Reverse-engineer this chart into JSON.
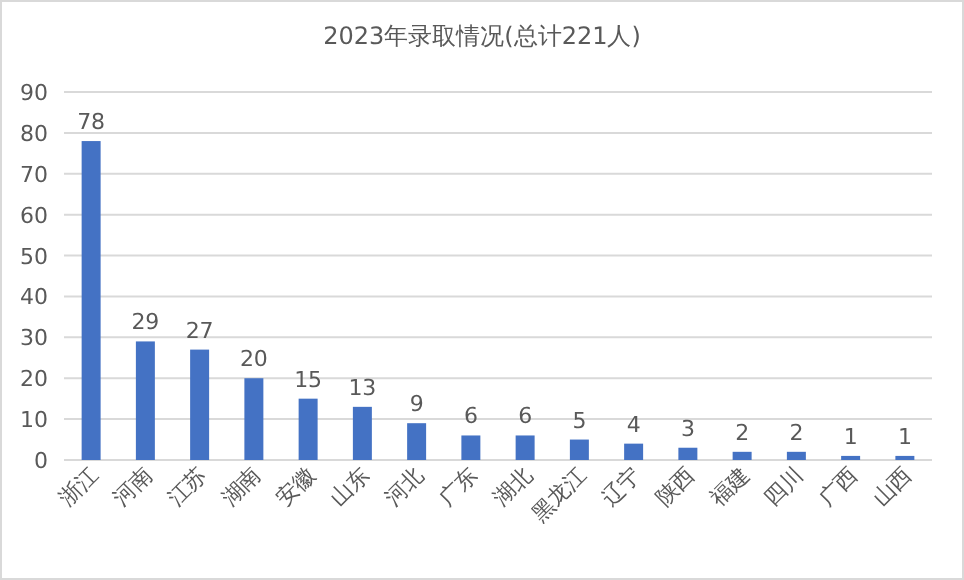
{
  "chart_data": {
    "type": "bar",
    "title": "2023年录取情况(总计221人)",
    "categories": [
      "浙江",
      "河南",
      "江苏",
      "湖南",
      "安徽",
      "山东",
      "河北",
      "广东",
      "湖北",
      "黑龙江",
      "辽宁",
      "陕西",
      "福建",
      "四川",
      "广西",
      "山西"
    ],
    "values": [
      78,
      29,
      27,
      20,
      15,
      13,
      9,
      6,
      6,
      5,
      4,
      3,
      2,
      2,
      1,
      1
    ],
    "color": "#4472c4",
    "ylim": [
      0,
      90
    ],
    "yticks": [
      0,
      10,
      20,
      30,
      40,
      50,
      60,
      70,
      80,
      90
    ],
    "grid": "y",
    "data_labels": true
  }
}
